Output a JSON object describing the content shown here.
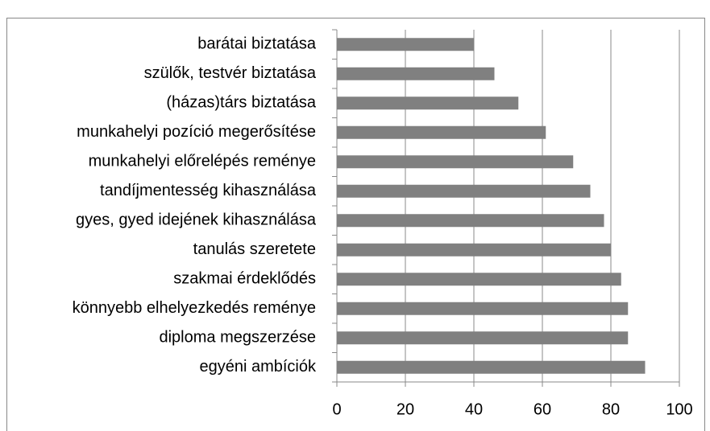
{
  "chart_data": {
    "type": "bar",
    "orientation": "horizontal",
    "categories": [
      "barátai biztatása",
      "szülők, testvér biztatása",
      "(házas)társ biztatása",
      "munkahelyi pozíció megerősítése",
      "munkahelyi előrelépés reménye",
      "tandíjmentesség kihasználása",
      "gyes, gyed idejének kihasználása",
      "tanulás szeretete",
      "szakmai érdeklődés",
      "könnyebb elhelyezkedés reménye",
      "diploma megszerzése",
      "egyéni ambíciók"
    ],
    "values": [
      40,
      46,
      53,
      61,
      69,
      74,
      78,
      80,
      83,
      85,
      85,
      90
    ],
    "color": "#808080",
    "xlim": [
      0,
      100
    ],
    "xticks": [
      0,
      20,
      40,
      60,
      80,
      100
    ],
    "grid": true
  }
}
